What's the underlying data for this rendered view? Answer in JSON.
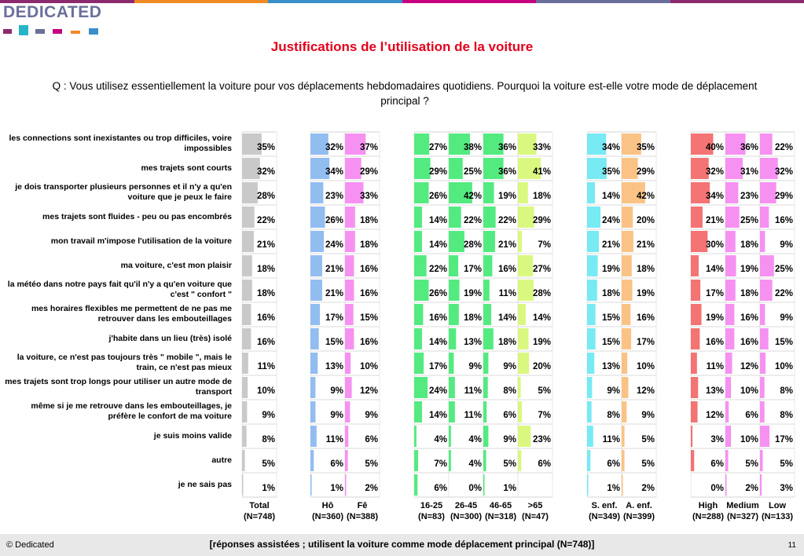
{
  "logo": "DEDICATED",
  "palette": {
    "logo_squares": [
      "#8b2a6e",
      "#26b5c8",
      "#6a6f9a",
      "#c6007e",
      "#f08a24",
      "#3a8ec9"
    ],
    "top_band": [
      "#8b2a6e",
      "#f08a24",
      "#3a8ec9",
      "#c6007e",
      "#6a6f9a",
      "#8b2a6e"
    ]
  },
  "title": "Justifications de l’utilisation de la voiture",
  "question": "Q : Vous utilisez essentiellement la voiture pour vos déplacements hebdomadaires quotidiens. Pourquoi la voiture est-elle votre mode de déplacement principal ?",
  "chart_data": {
    "type": "table",
    "unit": "%",
    "columns": [
      {
        "label": "Total",
        "n": "(N=748)",
        "color": "#bfbfbf"
      },
      {
        "label": "Hô",
        "n": "(N=360)",
        "color": "#7fb2ee"
      },
      {
        "label": "Fê",
        "n": "(N=388)",
        "color": "#f47ef0"
      },
      {
        "label": "16-25",
        "n": "(N=83)",
        "color": "#35e86a"
      },
      {
        "label": "26-45",
        "n": "(N=300)",
        "color": "#35e86a"
      },
      {
        "label": "46-65",
        "n": "(N=318)",
        "color": "#35e86a"
      },
      {
        "label": ">65",
        "n": "(N=47)",
        "color": "#d4f76a"
      },
      {
        "label": "S. enf.",
        "n": "(N=349)",
        "color": "#5fe6f2"
      },
      {
        "label": "A. enf.",
        "n": "(N=399)",
        "color": "#f9b870"
      },
      {
        "label": "High",
        "n": "(N=288)",
        "color": "#f25a5a"
      },
      {
        "label": "Medium",
        "n": "(N=327)",
        "color": "#f47ef0"
      },
      {
        "label": "Low",
        "n": "(N=133)",
        "color": "#f47ef0"
      }
    ],
    "rows": [
      {
        "label": "les connections sont inexistantes ou trop difficiles, voire impossibles",
        "values": [
          35,
          32,
          37,
          27,
          38,
          36,
          33,
          34,
          35,
          40,
          36,
          22
        ]
      },
      {
        "label": "mes trajets sont courts",
        "values": [
          32,
          34,
          29,
          29,
          25,
          36,
          41,
          35,
          29,
          32,
          31,
          32
        ]
      },
      {
        "label": "je dois transporter plusieurs personnes et il n'y a qu'en voiture que je peux le faire",
        "values": [
          28,
          23,
          33,
          26,
          42,
          19,
          18,
          14,
          42,
          34,
          23,
          29
        ]
      },
      {
        "label": "mes trajets sont fluides - peu ou pas encombrés",
        "values": [
          22,
          26,
          18,
          14,
          22,
          22,
          29,
          24,
          20,
          21,
          25,
          16
        ]
      },
      {
        "label": "mon travail m'impose l'utilisation de la voiture",
        "values": [
          21,
          24,
          18,
          14,
          28,
          21,
          7,
          21,
          21,
          30,
          18,
          9
        ]
      },
      {
        "label": "ma voiture, c'est mon plaisir",
        "values": [
          18,
          21,
          16,
          22,
          17,
          16,
          27,
          19,
          18,
          14,
          19,
          25
        ]
      },
      {
        "label": "la météo dans notre pays fait qu'il n'y a qu'en voiture que c'est \" confort \"",
        "values": [
          18,
          21,
          16,
          26,
          19,
          11,
          28,
          18,
          19,
          17,
          18,
          22
        ]
      },
      {
        "label": "mes horaires flexibles me permettent de ne pas me retrouver dans les embouteillages",
        "values": [
          16,
          17,
          15,
          16,
          18,
          14,
          14,
          15,
          16,
          19,
          16,
          9
        ]
      },
      {
        "label": "j'habite dans un lieu (très) isolé",
        "values": [
          16,
          15,
          16,
          14,
          13,
          18,
          19,
          15,
          17,
          16,
          16,
          15
        ]
      },
      {
        "label": "la voiture, ce n'est pas toujours très \" mobile \", mais le train, ce n'est pas mieux",
        "values": [
          11,
          13,
          10,
          17,
          9,
          9,
          20,
          13,
          10,
          11,
          12,
          10
        ]
      },
      {
        "label": "mes trajets sont trop longs pour utiliser un autre mode de transport",
        "values": [
          10,
          9,
          12,
          24,
          11,
          8,
          5,
          9,
          12,
          13,
          10,
          8
        ]
      },
      {
        "label": "même si je me retrouve dans les embouteillages, je préfère le confort de ma voiture",
        "values": [
          9,
          9,
          9,
          14,
          11,
          6,
          7,
          8,
          9,
          12,
          6,
          8
        ]
      },
      {
        "label": "je suis moins valide",
        "values": [
          8,
          11,
          6,
          4,
          4,
          9,
          23,
          11,
          5,
          3,
          10,
          17
        ]
      },
      {
        "label": "autre",
        "values": [
          5,
          6,
          5,
          7,
          4,
          5,
          6,
          6,
          5,
          6,
          5,
          5
        ]
      },
      {
        "label": "je ne sais pas",
        "values": [
          1,
          1,
          2,
          6,
          0,
          1,
          null,
          1,
          2,
          0,
          2,
          3
        ]
      }
    ]
  },
  "footer": {
    "left": "© Dedicated",
    "center": "[réponses assistées ; utilisent la voiture comme mode déplacement principal (N=748)]",
    "page": "11"
  }
}
